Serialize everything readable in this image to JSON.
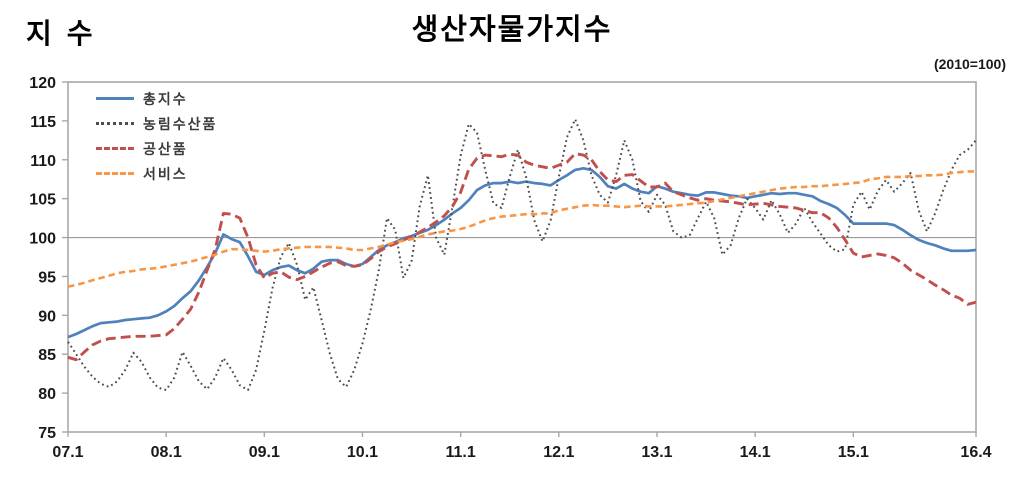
{
  "header": {
    "y_axis_unit_label": "지 수",
    "title": "생산자물가지수",
    "base_note": "(2010=100)"
  },
  "chart_data": {
    "type": "line",
    "title": "생산자물가지수",
    "ylabel": "지수",
    "base_note": "(2010=100)",
    "x_period": "2007.01 to 2016.04 monthly",
    "ylim": [
      75,
      120
    ],
    "ytick_step": 5,
    "gridline_at": 100,
    "grid": "single horizontal line at 100 only",
    "legend_position": "top-left inside plot",
    "x_tick_labels": [
      "07.1",
      "08.1",
      "09.1",
      "10.1",
      "11.1",
      "12.1",
      "13.1",
      "14.1",
      "15.1",
      "16.4"
    ],
    "x_tick_month_indices": [
      0,
      12,
      24,
      36,
      48,
      60,
      72,
      84,
      96,
      111
    ],
    "axis_color": "#a8a8a8",
    "gridline_color": "#9a9a9a",
    "tick_label_color": "#1a1a1a",
    "series": [
      {
        "name": "총지수",
        "key": "total-index",
        "style": "solid",
        "color": "#4F81BD",
        "values": [
          87.2,
          87.6,
          88.1,
          88.6,
          89.0,
          89.1,
          89.2,
          89.4,
          89.5,
          89.6,
          89.7,
          90.0,
          90.5,
          91.2,
          92.2,
          93.1,
          94.5,
          96.2,
          98.0,
          100.4,
          99.8,
          99.4,
          97.6,
          95.6,
          95.2,
          95.8,
          96.2,
          96.4,
          95.8,
          95.4,
          96.0,
          96.9,
          97.1,
          97.1,
          96.6,
          96.3,
          96.6,
          97.5,
          98.4,
          99.0,
          99.4,
          99.9,
          100.2,
          100.6,
          101.0,
          101.6,
          102.3,
          103.1,
          103.8,
          104.8,
          106.1,
          106.7,
          107.0,
          107.0,
          107.2,
          107.0,
          107.2,
          107.0,
          106.9,
          106.7,
          107.4,
          108.0,
          108.7,
          108.9,
          108.7,
          107.8,
          106.6,
          106.3,
          106.9,
          106.3,
          105.9,
          105.7,
          106.6,
          106.3,
          105.9,
          105.7,
          105.5,
          105.4,
          105.8,
          105.8,
          105.6,
          105.4,
          105.3,
          105.1,
          105.3,
          105.5,
          105.7,
          105.6,
          105.7,
          105.7,
          105.5,
          105.3,
          104.7,
          104.3,
          103.8,
          102.9,
          101.8,
          101.8,
          101.8,
          101.8,
          101.8,
          101.6,
          101.0,
          100.3,
          99.7,
          99.3,
          99.0,
          98.6,
          98.3,
          98.3,
          98.3,
          98.4
        ]
      },
      {
        "name": "농림수산품",
        "key": "agri-forestry-fishery",
        "style": "dotted",
        "color": "#4D4D4D",
        "values": [
          86.6,
          85.0,
          83.4,
          82.1,
          81.2,
          80.8,
          81.5,
          83.0,
          85.2,
          84.0,
          82.0,
          80.7,
          80.4,
          82.0,
          85.3,
          83.5,
          81.5,
          80.5,
          82.0,
          84.5,
          83.0,
          81.0,
          80.4,
          83.0,
          88.0,
          93.5,
          97.5,
          99.3,
          96.5,
          92.0,
          93.6,
          89.4,
          85.1,
          81.8,
          80.8,
          83.0,
          86.4,
          90.7,
          95.8,
          102.5,
          101.0,
          94.8,
          97.0,
          104.0,
          108.0,
          100.0,
          97.8,
          104.0,
          110.5,
          114.6,
          113.5,
          108.7,
          104.4,
          103.8,
          107.8,
          111.3,
          107.8,
          102.2,
          99.5,
          102.2,
          107.8,
          112.9,
          115.2,
          112.5,
          108.0,
          105.5,
          104.5,
          108.0,
          112.5,
          110.0,
          104.7,
          103.3,
          105.5,
          104.2,
          100.8,
          100.0,
          100.3,
          102.5,
          104.6,
          102.5,
          97.8,
          99.0,
          102.5,
          105.0,
          103.8,
          102.3,
          104.8,
          103.0,
          100.6,
          101.8,
          103.8,
          102.0,
          100.5,
          99.0,
          98.2,
          98.5,
          104.2,
          105.9,
          103.6,
          106.0,
          107.4,
          105.9,
          107.0,
          108.3,
          103.5,
          100.8,
          103.1,
          106.1,
          108.7,
          110.6,
          111.3,
          112.5
        ]
      },
      {
        "name": "공산품",
        "key": "manufactured-products",
        "style": "dashed-long",
        "color": "#C0504D",
        "values": [
          84.6,
          84.3,
          85.3,
          86.2,
          86.7,
          87.0,
          87.1,
          87.2,
          87.3,
          87.3,
          87.3,
          87.4,
          87.5,
          88.3,
          89.5,
          90.8,
          93.0,
          95.8,
          98.5,
          103.1,
          103.0,
          102.5,
          100.0,
          96.5,
          94.8,
          95.4,
          95.6,
          94.9,
          94.6,
          95.0,
          95.6,
          96.2,
          96.7,
          96.9,
          96.4,
          96.3,
          96.5,
          97.3,
          98.2,
          98.8,
          99.2,
          99.7,
          100.1,
          100.7,
          101.3,
          102.0,
          102.8,
          104.0,
          105.8,
          108.8,
          110.2,
          110.6,
          110.5,
          110.4,
          110.7,
          110.6,
          109.7,
          109.3,
          109.1,
          108.9,
          109.3,
          109.7,
          110.8,
          110.6,
          110.0,
          108.5,
          107.4,
          107.2,
          108.0,
          108.1,
          107.3,
          106.5,
          106.5,
          107.0,
          105.9,
          105.5,
          105.1,
          104.8,
          105.0,
          104.8,
          104.7,
          104.6,
          104.4,
          104.2,
          104.3,
          104.4,
          104.2,
          104.0,
          103.9,
          103.8,
          103.5,
          103.2,
          103.2,
          102.5,
          101.3,
          99.7,
          98.0,
          97.5,
          97.7,
          97.9,
          97.7,
          97.4,
          96.7,
          95.8,
          95.2,
          94.6,
          93.9,
          93.3,
          92.6,
          92.2,
          91.4,
          91.7
        ]
      },
      {
        "name": "서비스",
        "key": "services",
        "style": "dashed-short",
        "color": "#F79646",
        "values": [
          93.7,
          93.9,
          94.2,
          94.5,
          94.8,
          95.1,
          95.4,
          95.6,
          95.7,
          95.9,
          96.0,
          96.1,
          96.3,
          96.5,
          96.7,
          96.9,
          97.2,
          97.5,
          97.8,
          98.2,
          98.5,
          98.5,
          98.4,
          98.3,
          98.2,
          98.3,
          98.5,
          98.6,
          98.7,
          98.8,
          98.8,
          98.8,
          98.8,
          98.7,
          98.6,
          98.4,
          98.4,
          98.6,
          98.8,
          99.1,
          99.4,
          99.6,
          99.8,
          100.1,
          100.4,
          100.6,
          100.8,
          100.9,
          101.1,
          101.4,
          101.8,
          102.2,
          102.5,
          102.7,
          102.8,
          102.9,
          103.0,
          103.0,
          103.1,
          103.1,
          103.5,
          103.7,
          103.9,
          104.1,
          104.2,
          104.1,
          104.1,
          104.0,
          103.9,
          104.0,
          104.1,
          104.0,
          104.0,
          104.0,
          104.1,
          104.2,
          104.3,
          104.4,
          104.5,
          104.7,
          104.9,
          105.1,
          105.3,
          105.5,
          105.7,
          105.9,
          106.1,
          106.3,
          106.4,
          106.5,
          106.5,
          106.6,
          106.6,
          106.7,
          106.8,
          106.9,
          107.0,
          107.1,
          107.5,
          107.6,
          107.8,
          107.8,
          107.8,
          107.9,
          107.9,
          108.0,
          108.0,
          108.1,
          108.3,
          108.4,
          108.5,
          108.5
        ]
      }
    ]
  }
}
